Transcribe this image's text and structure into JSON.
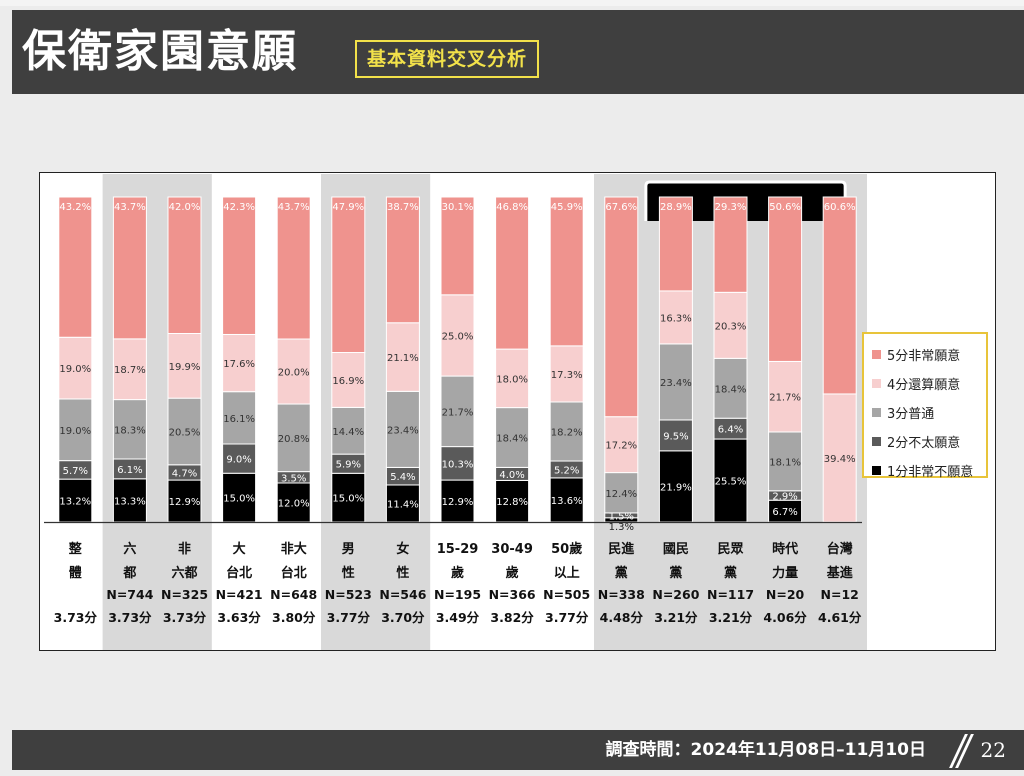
{
  "header": {
    "title": "保衛家園意願",
    "subtitle": "基本資料交叉分析"
  },
  "footer": {
    "survey_period": "調查時間：2024年11月08日–11月10日",
    "page_number": "22"
  },
  "colors": {
    "s5": "#ef938e",
    "s4": "#f7cfcf",
    "s3": "#a6a6a6",
    "s2": "#5a5a5a",
    "s1": "#000000",
    "shade": "#d9d9d9"
  },
  "chart_data": {
    "type": "bar",
    "stacked": true,
    "normalized_100": true,
    "legend": [
      {
        "key": "s5",
        "label": "5分非常願意"
      },
      {
        "key": "s4",
        "label": "4分還算願意"
      },
      {
        "key": "s3",
        "label": "3分普通"
      },
      {
        "key": "s2",
        "label": "2分不太願意"
      },
      {
        "key": "s1",
        "label": "1分非常不願意"
      }
    ],
    "legend_position": "right",
    "categories": [
      {
        "label1": "整",
        "label2": "體",
        "n": "",
        "score": "3.73分",
        "values": {
          "s1": "13.2%",
          "s2": "5.7%",
          "s3": "19.0%",
          "s4": "19.0%",
          "s5": "43.2%"
        }
      },
      {
        "label1": "六",
        "label2": "都",
        "n": "N=744",
        "score": "3.73分",
        "values": {
          "s1": "13.3%",
          "s2": "6.1%",
          "s3": "18.3%",
          "s4": "18.7%",
          "s5": "43.7%"
        }
      },
      {
        "label1": "非",
        "label2": "六都",
        "n": "N=325",
        "score": "3.73分",
        "values": {
          "s1": "12.9%",
          "s2": "4.7%",
          "s3": "20.5%",
          "s4": "19.9%",
          "s5": "42.0%"
        }
      },
      {
        "label1": "大",
        "label2": "台北",
        "n": "N=421",
        "score": "3.63分",
        "values": {
          "s1": "15.0%",
          "s2": "9.0%",
          "s3": "16.1%",
          "s4": "17.6%",
          "s5": "42.3%"
        }
      },
      {
        "label1": "非大",
        "label2": "台北",
        "n": "N=648",
        "score": "3.80分",
        "values": {
          "s1": "12.0%",
          "s2": "3.5%",
          "s3": "20.8%",
          "s4": "20.0%",
          "s5": "43.7%"
        }
      },
      {
        "label1": "男",
        "label2": "性",
        "n": "N=523",
        "score": "3.77分",
        "values": {
          "s1": "15.0%",
          "s2": "5.9%",
          "s3": "14.4%",
          "s4": "16.9%",
          "s5": "47.9%"
        }
      },
      {
        "label1": "女",
        "label2": "性",
        "n": "N=546",
        "score": "3.70分",
        "values": {
          "s1": "11.4%",
          "s2": "5.4%",
          "s3": "23.4%",
          "s4": "21.1%",
          "s5": "38.7%"
        }
      },
      {
        "label1": "15-29",
        "label2": "歲",
        "n": "N=195",
        "score": "3.49分",
        "values": {
          "s1": "12.9%",
          "s2": "10.3%",
          "s3": "21.7%",
          "s4": "25.0%",
          "s5": "30.1%"
        }
      },
      {
        "label1": "30-49",
        "label2": "歲",
        "n": "N=366",
        "score": "3.82分",
        "values": {
          "s1": "12.8%",
          "s2": "4.0%",
          "s3": "18.4%",
          "s4": "18.0%",
          "s5": "46.8%"
        }
      },
      {
        "label1": "50歲",
        "label2": "以上",
        "n": "N=505",
        "score": "3.77分",
        "values": {
          "s1": "13.6%",
          "s2": "5.2%",
          "s3": "18.2%",
          "s4": "17.3%",
          "s5": "45.9%"
        }
      },
      {
        "label1": "民進",
        "label2": "黨",
        "n": "N=338",
        "score": "4.48分",
        "values": {
          "s1": "1.3%",
          "s2": "1.5%",
          "s3": "12.4%",
          "s4": "17.2%",
          "s5": "67.6%"
        }
      },
      {
        "label1": "國民",
        "label2": "黨",
        "n": "N=260",
        "score": "3.21分",
        "values": {
          "s1": "21.9%",
          "s2": "9.5%",
          "s3": "23.4%",
          "s4": "16.3%",
          "s5": "28.9%"
        }
      },
      {
        "label1": "民眾",
        "label2": "黨",
        "n": "N=117",
        "score": "3.21分",
        "values": {
          "s1": "25.5%",
          "s2": "6.4%",
          "s3": "18.4%",
          "s4": "20.3%",
          "s5": "29.3%"
        }
      },
      {
        "label1": "時代",
        "label2": "力量",
        "n": "N=20",
        "score": "4.06分",
        "values": {
          "s1": "6.7%",
          "s2": "2.9%",
          "s3": "18.1%",
          "s4": "21.7%",
          "s5": "50.6%"
        }
      },
      {
        "label1": "台灣",
        "label2": "基進",
        "n": "N=12",
        "score": "4.61分",
        "values": {
          "s1": "",
          "s2": "",
          "s3": "",
          "s4": "39.4%",
          "s5": "60.6%"
        }
      }
    ],
    "shaded_groups": [
      [
        1,
        2
      ],
      [
        5,
        6
      ],
      [
        10,
        14
      ]
    ],
    "highlight_bracket": [
      11,
      14
    ]
  }
}
